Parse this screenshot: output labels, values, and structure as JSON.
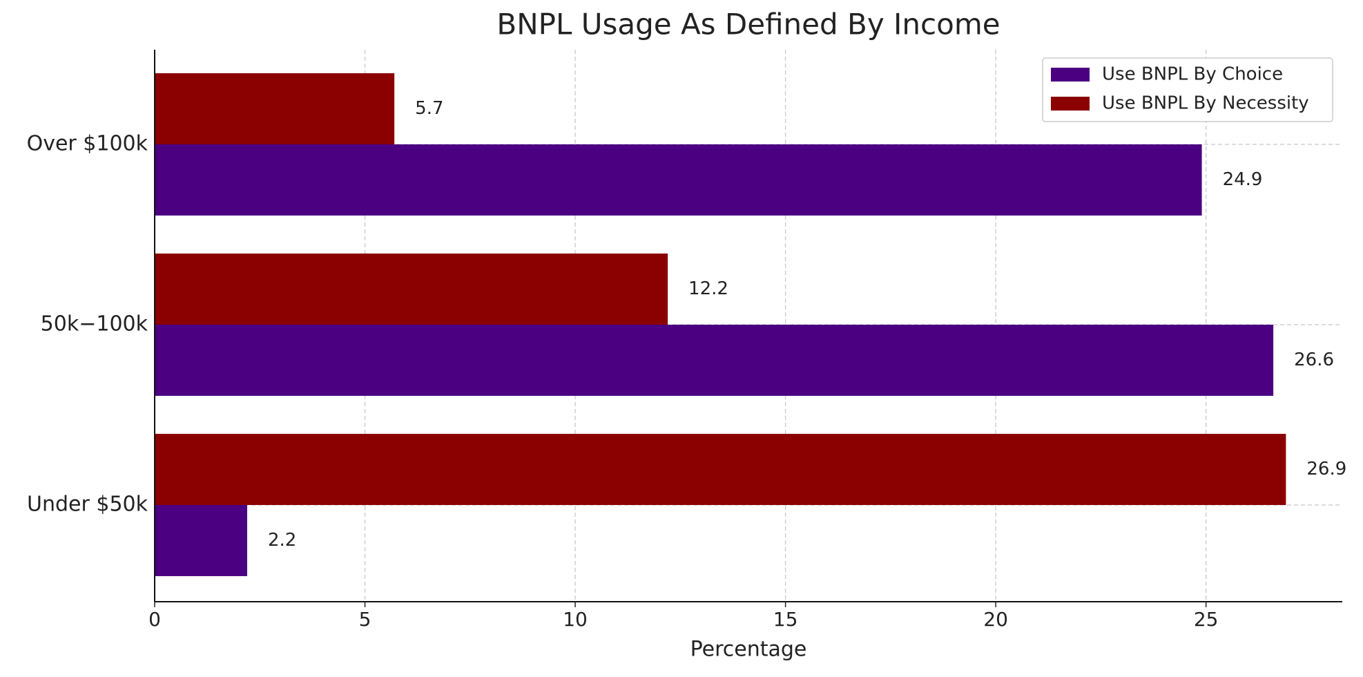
{
  "chart_data": {
    "type": "hbar",
    "title": "BNPL Usage As Defined By Income",
    "x_label": "Percentage",
    "categories": [
      "Under $50k",
      "50k−100k",
      "Over $100k"
    ],
    "series": [
      {
        "name": "Use BNPL By Choice",
        "color": "#4b0082",
        "values": [
          2.2,
          26.6,
          24.9
        ]
      },
      {
        "name": "Use BNPL By Necessity",
        "color": "#8b0000",
        "values": [
          26.9,
          12.2,
          5.7
        ]
      }
    ],
    "xlim": [
      0,
      28.24
    ],
    "xticks": [
      0,
      5,
      10,
      15,
      20,
      25
    ],
    "grid": true,
    "legend": "upper right"
  }
}
